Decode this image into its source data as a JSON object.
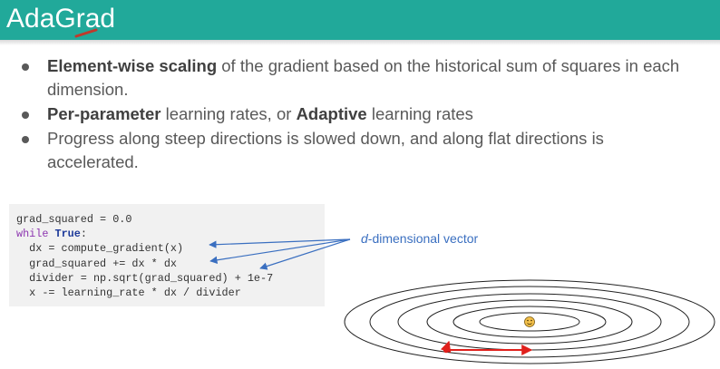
{
  "slide": {
    "title": "AdaGrad",
    "bullets": [
      {
        "bold": "Element-wise scaling",
        "rest": " of the gradient based on the historical sum of squares in each dimension."
      },
      {
        "bold": "Per-parameter",
        "mid": " learning rates, or ",
        "bold2": "Adaptive",
        "rest": " learning rates"
      },
      {
        "text": "Progress along steep directions is slowed down, and along flat directions is accelerated."
      }
    ]
  },
  "code": {
    "line1": "grad_squared = 0.0",
    "line2_kw": "while",
    "line2_kw2": "True",
    "line2_rest": ":",
    "line3": "  dx = compute_gradient(x)",
    "line4": "  grad_squared += dx * dx",
    "line5": "  divider = np.sqrt(grad_squared) + 1e-7",
    "line6": "  x -= learning_rate * dx / divider"
  },
  "annotation": {
    "italic": "d",
    "text": "-dimensional vector"
  },
  "colors": {
    "title_bar": "#21a99a",
    "annotation": "#3a6fc0",
    "arrow_red": "#e0201c"
  }
}
